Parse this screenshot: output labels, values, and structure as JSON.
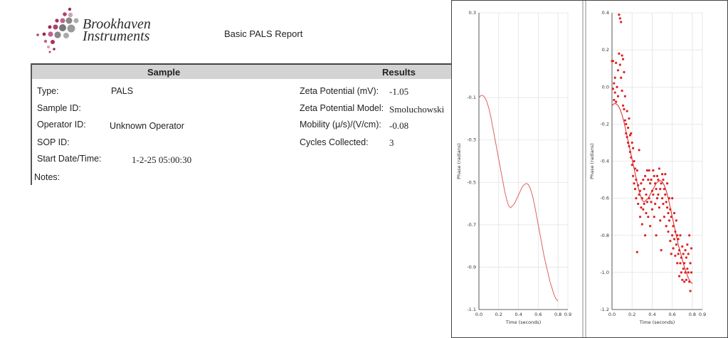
{
  "logo": {
    "line1": "Brookhaven",
    "line2": "Instruments"
  },
  "report_title": "Basic PALS Report",
  "sample": {
    "header": "Sample",
    "rows": [
      {
        "label": "Type:",
        "value": "PALS"
      },
      {
        "label": "Sample ID:",
        "value": ""
      },
      {
        "label": "Operator ID:",
        "value": "Unknown Operator"
      },
      {
        "label": "SOP ID:",
        "value": ""
      },
      {
        "label": "Start Date/Time:",
        "value": "1-2-25 05:00:30"
      },
      {
        "label": "Notes:",
        "value": ""
      }
    ]
  },
  "results": {
    "header": "Results",
    "rows": [
      {
        "label": "Zeta Potential (mV):",
        "value": "-1.05"
      },
      {
        "label": "Zeta Potential Model:",
        "value": "Smoluchowski"
      },
      {
        "label": "Mobility (μ/s)/(V/cm):",
        "value": "-0.08"
      },
      {
        "label": "Cycles Collected:",
        "value": "3"
      }
    ]
  },
  "chart_data": [
    {
      "type": "line",
      "xlabel": "Time (seconds)",
      "ylabel": "Phase (radians)",
      "xlim": [
        0.0,
        0.9
      ],
      "ylim": [
        -1.1,
        0.3
      ],
      "xticks": [
        "0.0",
        "0.2",
        "0.4",
        "0.6",
        "0.8",
        "0.9"
      ],
      "yticks": [
        "0.3",
        "-0.1",
        "-0.3",
        "-0.5",
        "-0.7",
        "-0.9",
        "-1.1"
      ],
      "yticks_vals": [
        0.3,
        -0.1,
        -0.3,
        -0.5,
        -0.7,
        -0.9,
        -1.1
      ],
      "xticks_vals": [
        0.0,
        0.2,
        0.4,
        0.6,
        0.8,
        0.9
      ],
      "grid": true,
      "color": "#e06060",
      "x": [
        0.0,
        0.02,
        0.04,
        0.06,
        0.08,
        0.1,
        0.12,
        0.14,
        0.16,
        0.18,
        0.2,
        0.22,
        0.24,
        0.26,
        0.28,
        0.3,
        0.32,
        0.34,
        0.36,
        0.38,
        0.4,
        0.42,
        0.44,
        0.46,
        0.48,
        0.5,
        0.52,
        0.54,
        0.56,
        0.58,
        0.6,
        0.62,
        0.64,
        0.66,
        0.68,
        0.7,
        0.72,
        0.74,
        0.76,
        0.78,
        0.8
      ],
      "y": [
        -0.1,
        -0.09,
        -0.09,
        -0.1,
        -0.12,
        -0.15,
        -0.19,
        -0.24,
        -0.29,
        -0.34,
        -0.39,
        -0.44,
        -0.49,
        -0.54,
        -0.58,
        -0.61,
        -0.62,
        -0.61,
        -0.6,
        -0.58,
        -0.56,
        -0.54,
        -0.52,
        -0.51,
        -0.505,
        -0.51,
        -0.53,
        -0.56,
        -0.6,
        -0.65,
        -0.7,
        -0.75,
        -0.8,
        -0.85,
        -0.89,
        -0.93,
        -0.97,
        -1.0,
        -1.03,
        -1.05,
        -1.06
      ]
    },
    {
      "type": "scatter",
      "xlabel": "Time (seconds)",
      "ylabel": "Phase (radians)",
      "xlim": [
        0.0,
        0.9
      ],
      "ylim": [
        -1.2,
        0.4
      ],
      "xticks": [
        "0.0",
        "0.2",
        "0.4",
        "0.6",
        "0.8",
        "0.9"
      ],
      "yticks": [
        "0.4",
        "0.2",
        "0.0",
        "-0.2",
        "-0.4",
        "-0.6",
        "-0.8",
        "-1.0",
        "-1.2"
      ],
      "yticks_vals": [
        0.4,
        0.2,
        0.0,
        -0.2,
        -0.4,
        -0.6,
        -0.8,
        -1.0,
        -1.2
      ],
      "xticks_vals": [
        0.0,
        0.2,
        0.4,
        0.6,
        0.8,
        0.9
      ],
      "grid": true,
      "color": "#dd2222",
      "fit_x": [
        0.0,
        0.02,
        0.04,
        0.06,
        0.08,
        0.1,
        0.12,
        0.14,
        0.16,
        0.18,
        0.2,
        0.22,
        0.24,
        0.26,
        0.28,
        0.3,
        0.32,
        0.34,
        0.36,
        0.38,
        0.4,
        0.42,
        0.44,
        0.46,
        0.48,
        0.5,
        0.52,
        0.54,
        0.56,
        0.58,
        0.6,
        0.62,
        0.64,
        0.66,
        0.68,
        0.7,
        0.72,
        0.74,
        0.76,
        0.78,
        0.8
      ],
      "fit_y": [
        -0.1,
        -0.09,
        -0.09,
        -0.1,
        -0.12,
        -0.15,
        -0.19,
        -0.24,
        -0.29,
        -0.34,
        -0.39,
        -0.44,
        -0.49,
        -0.54,
        -0.58,
        -0.61,
        -0.62,
        -0.61,
        -0.6,
        -0.58,
        -0.56,
        -0.54,
        -0.52,
        -0.51,
        -0.505,
        -0.51,
        -0.53,
        -0.56,
        -0.6,
        -0.65,
        -0.7,
        -0.75,
        -0.8,
        -0.85,
        -0.89,
        -0.93,
        -0.97,
        -1.0,
        -1.03,
        -1.05,
        -1.06
      ],
      "points": [
        [
          0.0,
          0.14
        ],
        [
          0.01,
          0.14
        ],
        [
          0.01,
          -0.01
        ],
        [
          0.02,
          0.02
        ],
        [
          0.02,
          -0.07
        ],
        [
          0.03,
          0.05
        ],
        [
          0.03,
          -0.03
        ],
        [
          0.04,
          0.13
        ],
        [
          0.04,
          -0.08
        ],
        [
          0.05,
          0.0
        ],
        [
          0.06,
          0.09
        ],
        [
          0.06,
          -0.05
        ],
        [
          0.07,
          0.39
        ],
        [
          0.07,
          0.18
        ],
        [
          0.08,
          0.37
        ],
        [
          0.08,
          0.12
        ],
        [
          0.09,
          0.35
        ],
        [
          0.09,
          0.05
        ],
        [
          0.1,
          0.17
        ],
        [
          0.1,
          -0.02
        ],
        [
          0.11,
          0.15
        ],
        [
          0.11,
          -0.1
        ],
        [
          0.12,
          0.08
        ],
        [
          0.12,
          -0.12
        ],
        [
          0.13,
          -0.05
        ],
        [
          0.13,
          -0.18
        ],
        [
          0.14,
          -0.2
        ],
        [
          0.14,
          -0.25
        ],
        [
          0.15,
          -0.13
        ],
        [
          0.15,
          -0.27
        ],
        [
          0.16,
          -0.22
        ],
        [
          0.16,
          -0.3
        ],
        [
          0.17,
          -0.17
        ],
        [
          0.17,
          -0.32
        ],
        [
          0.18,
          -0.26
        ],
        [
          0.18,
          -0.35
        ],
        [
          0.19,
          -0.25
        ],
        [
          0.19,
          -0.38
        ],
        [
          0.2,
          -0.3
        ],
        [
          0.2,
          -0.42
        ],
        [
          0.21,
          -0.33
        ],
        [
          0.21,
          -0.48
        ],
        [
          0.22,
          -0.4
        ],
        [
          0.22,
          -0.52
        ],
        [
          0.23,
          -0.44
        ],
        [
          0.23,
          -0.55
        ],
        [
          0.24,
          -0.5
        ],
        [
          0.24,
          -0.6
        ],
        [
          0.25,
          -0.45
        ],
        [
          0.25,
          -0.89
        ],
        [
          0.26,
          -0.53
        ],
        [
          0.26,
          -0.63
        ],
        [
          0.27,
          -0.34
        ],
        [
          0.27,
          -0.58
        ],
        [
          0.28,
          -0.7
        ],
        [
          0.28,
          -0.56
        ],
        [
          0.29,
          -0.52
        ],
        [
          0.29,
          -0.65
        ],
        [
          0.3,
          -0.6
        ],
        [
          0.3,
          -0.74
        ],
        [
          0.31,
          -0.5
        ],
        [
          0.31,
          -0.66
        ],
        [
          0.32,
          -0.55
        ],
        [
          0.32,
          -0.63
        ],
        [
          0.33,
          -0.48
        ],
        [
          0.33,
          -0.8
        ],
        [
          0.34,
          -0.58
        ],
        [
          0.34,
          -0.68
        ],
        [
          0.35,
          -0.45
        ],
        [
          0.35,
          -0.62
        ],
        [
          0.36,
          -0.5
        ],
        [
          0.36,
          -0.7
        ],
        [
          0.37,
          -0.45
        ],
        [
          0.37,
          -0.6
        ],
        [
          0.38,
          -0.52
        ],
        [
          0.38,
          -0.75
        ],
        [
          0.39,
          -0.5
        ],
        [
          0.39,
          -0.62
        ],
        [
          0.4,
          -0.56
        ],
        [
          0.4,
          -0.66
        ],
        [
          0.41,
          -0.45
        ],
        [
          0.41,
          -0.58
        ],
        [
          0.42,
          -0.48
        ],
        [
          0.42,
          -0.7
        ],
        [
          0.43,
          -0.52
        ],
        [
          0.43,
          -0.63
        ],
        [
          0.44,
          -0.55
        ],
        [
          0.44,
          -0.8
        ],
        [
          0.45,
          -0.48
        ],
        [
          0.45,
          -0.6
        ],
        [
          0.46,
          -0.5
        ],
        [
          0.46,
          -0.58
        ],
        [
          0.47,
          -0.44
        ],
        [
          0.47,
          -0.65
        ],
        [
          0.48,
          -0.55
        ],
        [
          0.48,
          -0.72
        ],
        [
          0.49,
          -0.88
        ],
        [
          0.49,
          -0.52
        ],
        [
          0.5,
          -0.6
        ],
        [
          0.5,
          -0.47
        ],
        [
          0.51,
          -0.5
        ],
        [
          0.51,
          -0.63
        ],
        [
          0.52,
          -0.55
        ],
        [
          0.52,
          -0.7
        ],
        [
          0.53,
          -0.58
        ],
        [
          0.53,
          -0.47
        ],
        [
          0.54,
          -0.62
        ],
        [
          0.54,
          -0.75
        ],
        [
          0.55,
          -0.65
        ],
        [
          0.55,
          -0.52
        ],
        [
          0.56,
          -0.68
        ],
        [
          0.56,
          -0.78
        ],
        [
          0.57,
          -0.6
        ],
        [
          0.57,
          -0.72
        ],
        [
          0.58,
          -0.66
        ],
        [
          0.58,
          -0.83
        ],
        [
          0.59,
          -0.7
        ],
        [
          0.59,
          -0.9
        ],
        [
          0.6,
          -0.6
        ],
        [
          0.6,
          -0.8
        ],
        [
          0.61,
          -0.75
        ],
        [
          0.61,
          -0.87
        ],
        [
          0.62,
          -0.68
        ],
        [
          0.62,
          -0.82
        ],
        [
          0.63,
          -0.78
        ],
        [
          0.63,
          -0.91
        ],
        [
          0.64,
          -0.85
        ],
        [
          0.64,
          -0.72
        ],
        [
          0.65,
          -0.8
        ],
        [
          0.65,
          -0.95
        ],
        [
          0.66,
          -0.82
        ],
        [
          0.66,
          -0.9
        ],
        [
          0.67,
          -0.88
        ],
        [
          0.67,
          -1.02
        ],
        [
          0.68,
          -0.8
        ],
        [
          0.68,
          -0.95
        ],
        [
          0.69,
          -0.92
        ],
        [
          0.69,
          -1.0
        ],
        [
          0.7,
          -0.86
        ],
        [
          0.7,
          -1.04
        ],
        [
          0.71,
          -0.9
        ],
        [
          0.71,
          -0.98
        ],
        [
          0.72,
          -0.95
        ],
        [
          0.72,
          -1.05
        ],
        [
          0.73,
          -0.88
        ],
        [
          0.73,
          -1.0
        ],
        [
          0.74,
          -0.92
        ],
        [
          0.74,
          -1.04
        ],
        [
          0.75,
          -0.98
        ],
        [
          0.75,
          -0.85
        ],
        [
          0.76,
          -1.0
        ],
        [
          0.76,
          -0.9
        ],
        [
          0.77,
          -1.05
        ],
        [
          0.77,
          -0.8
        ],
        [
          0.78,
          -0.95
        ],
        [
          0.78,
          -1.1
        ],
        [
          0.79,
          -0.87
        ],
        [
          0.79,
          -1.0
        ]
      ]
    }
  ]
}
